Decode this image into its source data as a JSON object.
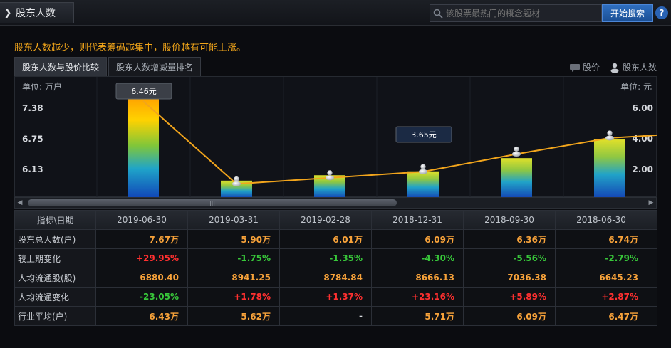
{
  "header": {
    "title": "股东人数",
    "search_placeholder": "该股票最热门的概念题材",
    "search_button": "开始搜索",
    "help": "?"
  },
  "notice": "股东人数越少，则代表筹码越集中，股价越有可能上涨。",
  "tabs": [
    {
      "label": "股东人数与股价比较",
      "active": true
    },
    {
      "label": "股东人数增减量排名",
      "active": false
    }
  ],
  "legend": {
    "price": "股价",
    "holders": "股东人数"
  },
  "chart": {
    "unit_left": "单位: 万户",
    "unit_right": "单位: 元",
    "left_ticks": [
      "7.38",
      "6.75",
      "6.13"
    ],
    "right_ticks": [
      "6.00",
      "4.00",
      "2.00"
    ],
    "tooltips": [
      "6.46元",
      "3.65元"
    ]
  },
  "chart_data": {
    "type": "bar",
    "categories": [
      "2019-06-30",
      "2019-03-31",
      "2019-02-28",
      "2018-12-31",
      "2018-09-30",
      "2018-06-30"
    ],
    "series": [
      {
        "values": [
          7.67,
          5.9,
          6.01,
          6.09,
          6.36,
          6.74
        ]
      },
      {
        "type": "line",
        "values": [
          6.46,
          1.05,
          1.45,
          1.85,
          3.0,
          4.05
        ]
      }
    ]
  },
  "table": {
    "header_label": "指标\\日期",
    "columns": [
      "2019-06-30",
      "2019-03-31",
      "2019-02-28",
      "2018-12-31",
      "2018-09-30",
      "2018-06-30"
    ],
    "rows": [
      {
        "label": "股东总人数(户)",
        "values": [
          "7.67万",
          "5.90万",
          "6.01万",
          "6.09万",
          "6.36万",
          "6.74万"
        ],
        "colors": [
          "orange",
          "orange",
          "orange",
          "orange",
          "orange",
          "orange"
        ]
      },
      {
        "label": "较上期变化",
        "values": [
          "+29.95%",
          "-1.75%",
          "-1.35%",
          "-4.30%",
          "-5.56%",
          "-2.79%"
        ],
        "colors": [
          "red",
          "green",
          "green",
          "green",
          "green",
          "green"
        ]
      },
      {
        "label": "人均流通股(股)",
        "values": [
          "6880.40",
          "8941.25",
          "8784.84",
          "8666.13",
          "7036.38",
          "6645.23"
        ],
        "colors": [
          "orange",
          "orange",
          "orange",
          "orange",
          "orange",
          "orange"
        ]
      },
      {
        "label": "人均流通变化",
        "values": [
          "-23.05%",
          "+1.78%",
          "+1.37%",
          "+23.16%",
          "+5.89%",
          "+2.87%"
        ],
        "colors": [
          "green",
          "red",
          "red",
          "red",
          "red",
          "red"
        ]
      },
      {
        "label": "行业平均(户)",
        "values": [
          "6.43万",
          "5.62万",
          "-",
          "5.71万",
          "6.09万",
          "6.47万"
        ],
        "colors": [
          "orange",
          "orange",
          "white",
          "orange",
          "orange",
          "orange"
        ]
      }
    ]
  }
}
